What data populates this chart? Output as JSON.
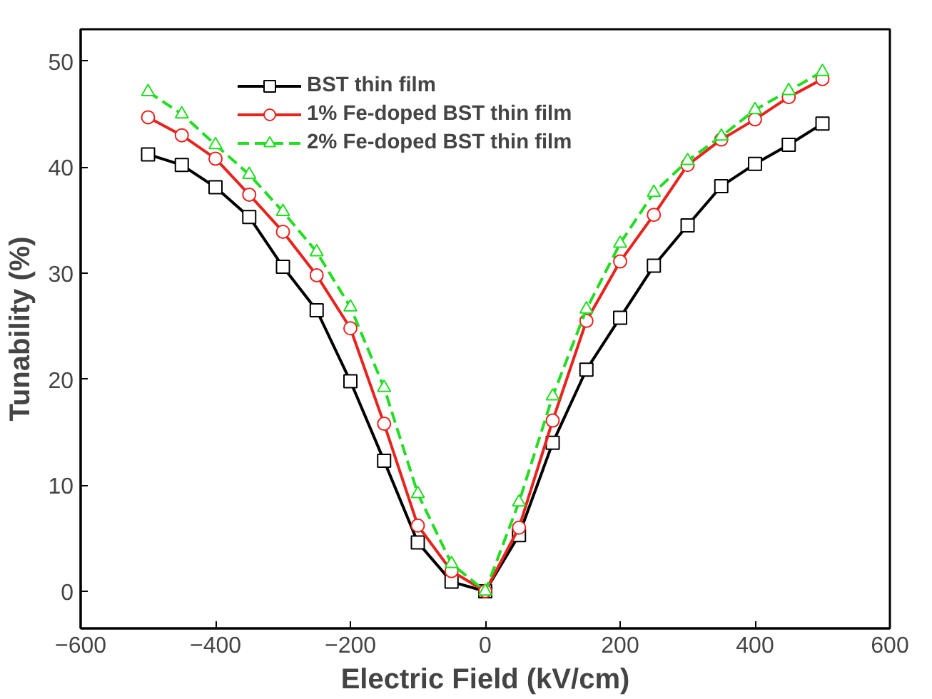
{
  "chart_data": {
    "type": "line",
    "xlabel": "Electric Field (kV/cm)",
    "ylabel": "Tunability (%)",
    "x": [
      -500,
      -450,
      -400,
      -350,
      -300,
      -250,
      -200,
      -150,
      -100,
      -50,
      0,
      50,
      100,
      150,
      200,
      250,
      300,
      350,
      400,
      450,
      500
    ],
    "series": [
      {
        "name": "BST thin film",
        "color": "#000000",
        "marker": "square",
        "values": [
          41.2,
          40.2,
          38.1,
          35.3,
          30.6,
          26.5,
          19.8,
          12.3,
          4.6,
          0.9,
          0,
          5.3,
          14.0,
          20.9,
          25.8,
          30.7,
          34.5,
          38.2,
          40.3,
          42.1,
          44.1
        ]
      },
      {
        "name": "1% Fe-doped BST thin film",
        "color": "#e8231d",
        "marker": "circle",
        "values": [
          44.7,
          43.0,
          40.8,
          37.4,
          33.9,
          29.8,
          24.8,
          15.8,
          6.2,
          1.9,
          0,
          6.0,
          16.1,
          25.5,
          31.1,
          35.5,
          40.2,
          42.6,
          44.5,
          46.6,
          48.3
        ]
      },
      {
        "name": "2% Fe-doped BST thin film",
        "color": "#22dd22",
        "marker": "triangle",
        "line_style": "dashed",
        "values": [
          47.1,
          45.0,
          42.1,
          39.3,
          35.8,
          32.0,
          26.8,
          19.2,
          9.2,
          2.6,
          0,
          8.4,
          18.4,
          26.6,
          32.8,
          37.6,
          40.6,
          42.9,
          45.4,
          47.2,
          49.0
        ]
      }
    ],
    "xlim": [
      -600,
      600
    ],
    "ylim": [
      -3.5,
      53
    ],
    "xticks": [
      -600,
      -400,
      -200,
      0,
      200,
      400,
      600
    ],
    "yticks": [
      0,
      10,
      20,
      30,
      40,
      50
    ],
    "grid": false,
    "legend": "top left",
    "line_style": "solid"
  }
}
